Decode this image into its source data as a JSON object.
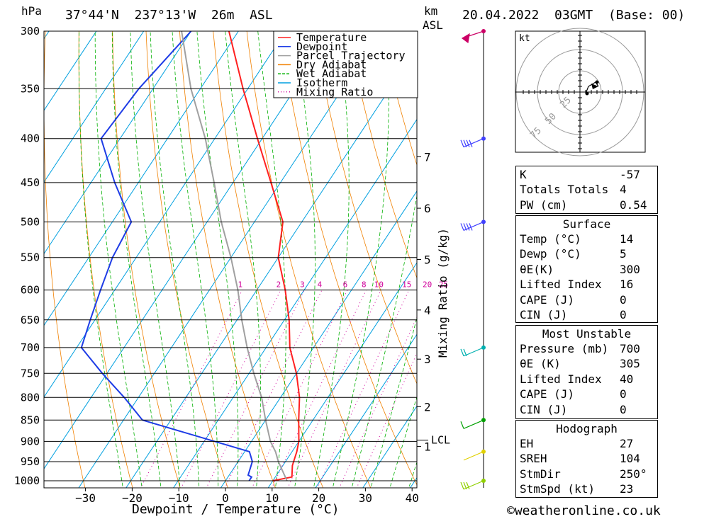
{
  "header": {
    "location": "37°44'N  237°13'W  26m  ASL",
    "datetime": "20.04.2022  03GMT  (Base: 00)",
    "units_left": "hPa",
    "units_right_1": "km",
    "units_right_2": "ASL"
  },
  "footer": {
    "copyright": "©weatheronline.co.uk"
  },
  "chart_data": {
    "type": "line",
    "title": "",
    "xlabel": "Dewpoint / Temperature (°C)",
    "ylabel": "hPa",
    "y2label": "Mixing Ratio (g/kg)",
    "x_ticks": [
      -30,
      -20,
      -10,
      0,
      10,
      20,
      30,
      40
    ],
    "p_ticks": [
      300,
      350,
      400,
      450,
      500,
      550,
      600,
      650,
      700,
      750,
      800,
      850,
      900,
      950,
      1000
    ],
    "xlim": [
      -40,
      40
    ],
    "ylim_hpa": [
      1020,
      300
    ],
    "skew_per_decade": 33.8,
    "km_ticks": [
      {
        "label": "7",
        "p": 420
      },
      {
        "label": "6",
        "p": 482
      },
      {
        "label": "5",
        "p": 553
      },
      {
        "label": "4",
        "p": 633
      },
      {
        "label": "3",
        "p": 722
      },
      {
        "label": "2",
        "p": 820
      },
      {
        "label": "1",
        "p": 912
      }
    ],
    "lcl": {
      "label": "LCL",
      "p": 897
    },
    "mixing_ratio_labels": [
      "1",
      "2",
      "3",
      "4",
      "6",
      "8",
      "10",
      "15",
      "20",
      "25"
    ],
    "legend": {
      "position": "top-right",
      "entries": [
        {
          "name": "Temperature",
          "color": "#ff2020",
          "style": "solid"
        },
        {
          "name": "Dewpoint",
          "color": "#1e3ce6",
          "style": "solid"
        },
        {
          "name": "Parcel Trajectory",
          "color": "#a0a0a0",
          "style": "solid"
        },
        {
          "name": "Dry Adiabat",
          "color": "#f08000",
          "style": "solid"
        },
        {
          "name": "Wet Adiabat",
          "color": "#00b000",
          "style": "dashed"
        },
        {
          "name": "Isotherm",
          "color": "#00a0e0",
          "style": "solid"
        },
        {
          "name": "Mixing Ratio",
          "color": "#d0009a",
          "style": "dotted"
        }
      ]
    },
    "series": [
      {
        "name": "Temperature",
        "color": "#ff2020",
        "points": [
          [
            1000,
            10
          ],
          [
            990,
            13.5
          ],
          [
            960,
            12
          ],
          [
            925,
            11
          ],
          [
            900,
            10
          ],
          [
            850,
            7
          ],
          [
            800,
            4
          ],
          [
            750,
            0
          ],
          [
            700,
            -5
          ],
          [
            650,
            -9
          ],
          [
            600,
            -14
          ],
          [
            550,
            -20
          ],
          [
            500,
            -24
          ],
          [
            450,
            -32
          ],
          [
            400,
            -41
          ],
          [
            350,
            -51
          ],
          [
            300,
            -62
          ]
        ]
      },
      {
        "name": "Dewpoint",
        "color": "#1e3ce6",
        "points": [
          [
            1000,
            5
          ],
          [
            990,
            5
          ],
          [
            985,
            4
          ],
          [
            950,
            3
          ],
          [
            925,
            1
          ],
          [
            850,
            -26
          ],
          [
            800,
            -33
          ],
          [
            750,
            -41
          ],
          [
            700,
            -49
          ],
          [
            650,
            -51
          ],
          [
            600,
            -53
          ],
          [
            550,
            -55
          ],
          [
            500,
            -56
          ],
          [
            450,
            -65
          ],
          [
            400,
            -74
          ],
          [
            350,
            -73
          ],
          [
            300,
            -70
          ]
        ]
      },
      {
        "name": "Parcel Trajectory",
        "color": "#a0a0a0",
        "points": [
          [
            1000,
            13
          ],
          [
            950,
            8.5
          ],
          [
            925,
            6.5
          ],
          [
            900,
            4
          ],
          [
            850,
            0
          ],
          [
            800,
            -4
          ],
          [
            750,
            -9
          ],
          [
            700,
            -14
          ],
          [
            650,
            -19
          ],
          [
            600,
            -24
          ],
          [
            550,
            -30
          ],
          [
            500,
            -37
          ],
          [
            450,
            -44
          ],
          [
            400,
            -52
          ],
          [
            350,
            -62
          ],
          [
            300,
            -72
          ]
        ]
      }
    ],
    "wind_barbs": [
      {
        "p": 300,
        "color": "#cc0066",
        "flag": true
      },
      {
        "p": 400,
        "color": "#4040ff",
        "lines": 4
      },
      {
        "p": 500,
        "color": "#4040ff",
        "lines": 4
      },
      {
        "p": 700,
        "color": "#00b0b0",
        "lines": 2
      },
      {
        "p": 850,
        "color": "#00a000",
        "lines": 1
      },
      {
        "p": 925,
        "color": "#e0d000",
        "lines": 0
      },
      {
        "p": 1000,
        "color": "#90d000",
        "lines": 3
      }
    ]
  },
  "hodograph": {
    "unit_label": "kt",
    "ring_labels": [
      "25",
      "50",
      "75"
    ]
  },
  "indices": {
    "rows": [
      {
        "k": "K",
        "v": "-57"
      },
      {
        "k": "Totals Totals",
        "v": "4"
      },
      {
        "k": "PW (cm)",
        "v": "0.54"
      }
    ],
    "surface": {
      "title": "Surface",
      "rows": [
        {
          "k": "Temp (°C)",
          "v": "14"
        },
        {
          "k": "Dewp (°C)",
          "v": "5"
        },
        {
          "k": "θE(K)",
          "v": "300"
        },
        {
          "k": "Lifted Index",
          "v": "16"
        },
        {
          "k": "CAPE (J)",
          "v": "0"
        },
        {
          "k": "CIN (J)",
          "v": "0"
        }
      ]
    },
    "most_unstable": {
      "title": "Most Unstable",
      "rows": [
        {
          "k": "Pressure (mb)",
          "v": "700"
        },
        {
          "k": "θE (K)",
          "v": "305"
        },
        {
          "k": "Lifted Index",
          "v": "40"
        },
        {
          "k": "CAPE (J)",
          "v": "0"
        },
        {
          "k": "CIN (J)",
          "v": "0"
        }
      ]
    },
    "hodograph_box": {
      "title": "Hodograph",
      "rows": [
        {
          "k": "EH",
          "v": "27"
        },
        {
          "k": "SREH",
          "v": "104"
        },
        {
          "k": "StmDir",
          "v": "250°"
        },
        {
          "k": "StmSpd (kt)",
          "v": "23"
        }
      ]
    }
  }
}
